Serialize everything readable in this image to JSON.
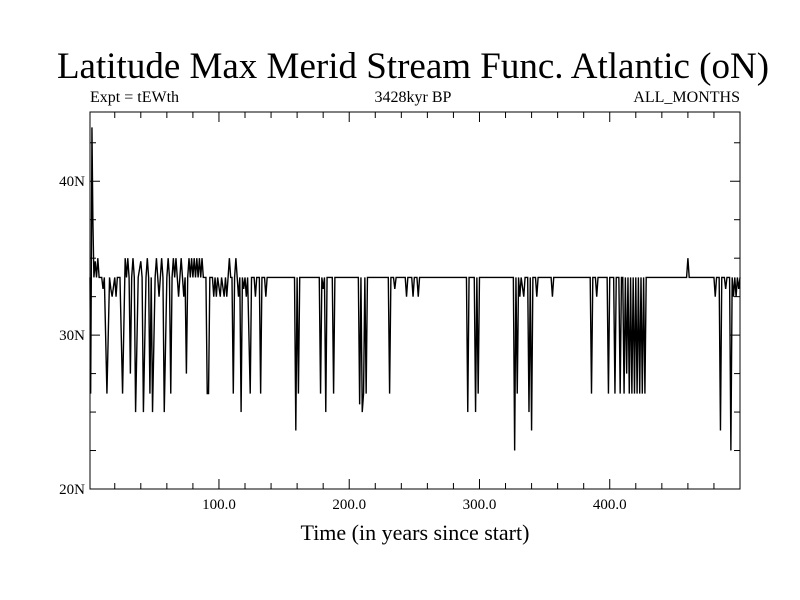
{
  "chart_data": {
    "type": "line",
    "title": "Latitude Max Merid Stream Func. Atlantic (oN)",
    "subtitle_left": "Expt = tEWth",
    "subtitle_center": "3428kyr BP",
    "subtitle_right": "ALL_MONTHS",
    "xlabel": "Time (in years since start)",
    "ylabel": "",
    "xlim": [
      1,
      500
    ],
    "ylim": [
      20,
      44.5
    ],
    "x_ticks": [
      {
        "value": 100,
        "label": "100.0"
      },
      {
        "value": 200,
        "label": "200.0"
      },
      {
        "value": 300,
        "label": "300.0"
      },
      {
        "value": 400,
        "label": "400.0"
      }
    ],
    "y_ticks": [
      {
        "value": 20,
        "label": "20N"
      },
      {
        "value": 30,
        "label": "30N"
      },
      {
        "value": 40,
        "label": "40N"
      }
    ],
    "baseline": 33.75,
    "points": [
      [
        1,
        33.75
      ],
      [
        1.5,
        26.2
      ],
      [
        2,
        33.75
      ],
      [
        2.5,
        43.5
      ],
      [
        3.2,
        37.5
      ],
      [
        4,
        33.75
      ],
      [
        5,
        34.8
      ],
      [
        6,
        33.75
      ],
      [
        7,
        35.0
      ],
      [
        8,
        33.75
      ],
      [
        10,
        33.75
      ],
      [
        11,
        33.0
      ],
      [
        12,
        33.75
      ],
      [
        14,
        26.2
      ],
      [
        16,
        33.75
      ],
      [
        17,
        33.0
      ],
      [
        18,
        32.5
      ],
      [
        20,
        33.75
      ],
      [
        21,
        32.5
      ],
      [
        22,
        33.75
      ],
      [
        24,
        33.75
      ],
      [
        26,
        26.2
      ],
      [
        28,
        35.0
      ],
      [
        29,
        33.75
      ],
      [
        30,
        35.0
      ],
      [
        31,
        33.75
      ],
      [
        32,
        27.5
      ],
      [
        33,
        33.75
      ],
      [
        34,
        35.0
      ],
      [
        35,
        33.75
      ],
      [
        36,
        25.0
      ],
      [
        38,
        33.75
      ],
      [
        40,
        34.8
      ],
      [
        41,
        33.75
      ],
      [
        42,
        25.0
      ],
      [
        44,
        33.75
      ],
      [
        45,
        35.0
      ],
      [
        46,
        33.75
      ],
      [
        47,
        26.2
      ],
      [
        48,
        33.75
      ],
      [
        49,
        25.0
      ],
      [
        51,
        33.75
      ],
      [
        52,
        35.0
      ],
      [
        53,
        33.75
      ],
      [
        54,
        32.5
      ],
      [
        55,
        33.75
      ],
      [
        56,
        35.0
      ],
      [
        57,
        33.75
      ],
      [
        58,
        25.0
      ],
      [
        60,
        33.75
      ],
      [
        61,
        35.0
      ],
      [
        62,
        33.75
      ],
      [
        63,
        26.2
      ],
      [
        64,
        33.75
      ],
      [
        65,
        35.0
      ],
      [
        66,
        33.75
      ],
      [
        67,
        35.0
      ],
      [
        68,
        33.75
      ],
      [
        69,
        32.5
      ],
      [
        70,
        33.75
      ],
      [
        71,
        35.0
      ],
      [
        72,
        33.75
      ],
      [
        73,
        32.5
      ],
      [
        74,
        33.75
      ],
      [
        75,
        27.5
      ],
      [
        76,
        33.75
      ],
      [
        77,
        35.0
      ],
      [
        78,
        33.75
      ],
      [
        79,
        35.0
      ],
      [
        80,
        33.75
      ],
      [
        81,
        35.0
      ],
      [
        82,
        33.75
      ],
      [
        83,
        35.0
      ],
      [
        84,
        33.75
      ],
      [
        85,
        35.0
      ],
      [
        86,
        33.75
      ],
      [
        87,
        35.0
      ],
      [
        88,
        33.75
      ],
      [
        90,
        33.75
      ],
      [
        91,
        26.2
      ],
      [
        92,
        26.2
      ],
      [
        93,
        33.75
      ],
      [
        95,
        33.75
      ],
      [
        96,
        32.5
      ],
      [
        97,
        33.75
      ],
      [
        98,
        32.5
      ],
      [
        99,
        33.75
      ],
      [
        101,
        32.5
      ],
      [
        102,
        33.75
      ],
      [
        104,
        32.5
      ],
      [
        105,
        33.75
      ],
      [
        106,
        32.5
      ],
      [
        107,
        33.75
      ],
      [
        108,
        35.0
      ],
      [
        109,
        33.75
      ],
      [
        110,
        33.75
      ],
      [
        111,
        26.2
      ],
      [
        112,
        33.75
      ],
      [
        113,
        35.0
      ],
      [
        114,
        33.75
      ],
      [
        115,
        32.5
      ],
      [
        116,
        33.75
      ],
      [
        117,
        25.0
      ],
      [
        118,
        33.75
      ],
      [
        119,
        33.0
      ],
      [
        120,
        33.75
      ],
      [
        121,
        32.5
      ],
      [
        122,
        33.75
      ],
      [
        124,
        26.2
      ],
      [
        125,
        33.75
      ],
      [
        127,
        33.75
      ],
      [
        128,
        32.5
      ],
      [
        129,
        33.75
      ],
      [
        131,
        33.75
      ],
      [
        132,
        26.2
      ],
      [
        133,
        33.75
      ],
      [
        135,
        33.75
      ],
      [
        136,
        32.5
      ],
      [
        137,
        33.75
      ],
      [
        158,
        33.75
      ],
      [
        159,
        23.8
      ],
      [
        160,
        33.75
      ],
      [
        161,
        26.2
      ],
      [
        162,
        33.75
      ],
      [
        177,
        33.75
      ],
      [
        178,
        26.2
      ],
      [
        179,
        33.75
      ],
      [
        180,
        33.0
      ],
      [
        181,
        33.75
      ],
      [
        182,
        25.0
      ],
      [
        183,
        33.75
      ],
      [
        187,
        33.75
      ],
      [
        188,
        26.2
      ],
      [
        189,
        33.75
      ],
      [
        207,
        33.75
      ],
      [
        208,
        25.5
      ],
      [
        209,
        33.75
      ],
      [
        210,
        25.0
      ],
      [
        211,
        26.2
      ],
      [
        212,
        33.75
      ],
      [
        213,
        26.2
      ],
      [
        214,
        33.75
      ],
      [
        230,
        33.75
      ],
      [
        231,
        26.2
      ],
      [
        232,
        33.75
      ],
      [
        234,
        33.75
      ],
      [
        235,
        33.0
      ],
      [
        236,
        33.75
      ],
      [
        243,
        33.75
      ],
      [
        244,
        32.5
      ],
      [
        245,
        33.75
      ],
      [
        248,
        33.75
      ],
      [
        249,
        32.5
      ],
      [
        250,
        33.75
      ],
      [
        252,
        33.75
      ],
      [
        253,
        32.5
      ],
      [
        254,
        33.75
      ],
      [
        290,
        33.75
      ],
      [
        291,
        25.0
      ],
      [
        292,
        33.75
      ],
      [
        296,
        33.75
      ],
      [
        297,
        25.0
      ],
      [
        298,
        33.75
      ],
      [
        299,
        26.2
      ],
      [
        300,
        33.75
      ],
      [
        326,
        33.75
      ],
      [
        327,
        22.5
      ],
      [
        328,
        33.75
      ],
      [
        329,
        26.2
      ],
      [
        330,
        33.75
      ],
      [
        331,
        32.5
      ],
      [
        332,
        33.75
      ],
      [
        334,
        32.5
      ],
      [
        335,
        33.75
      ],
      [
        337,
        33.75
      ],
      [
        338,
        25.0
      ],
      [
        339,
        33.75
      ],
      [
        340,
        23.8
      ],
      [
        341,
        33.75
      ],
      [
        343,
        33.75
      ],
      [
        344,
        32.5
      ],
      [
        345,
        33.75
      ],
      [
        355,
        33.75
      ],
      [
        356,
        32.5
      ],
      [
        357,
        33.75
      ],
      [
        385,
        33.75
      ],
      [
        386,
        26.2
      ],
      [
        387,
        33.75
      ],
      [
        389,
        33.75
      ],
      [
        390,
        32.5
      ],
      [
        391,
        33.75
      ],
      [
        398,
        33.75
      ],
      [
        399,
        26.2
      ],
      [
        400,
        33.75
      ],
      [
        403,
        33.75
      ],
      [
        404,
        26.2
      ],
      [
        405,
        33.75
      ],
      [
        407,
        33.75
      ],
      [
        408,
        26.2
      ],
      [
        409,
        33.75
      ],
      [
        410,
        33.75
      ],
      [
        411,
        26.2
      ],
      [
        412,
        33.75
      ],
      [
        413,
        27.5
      ],
      [
        414,
        33.75
      ],
      [
        415,
        26.2
      ],
      [
        416,
        33.75
      ],
      [
        417,
        26.2
      ],
      [
        418,
        33.75
      ],
      [
        419,
        26.2
      ],
      [
        420,
        33.75
      ],
      [
        421,
        26.2
      ],
      [
        422,
        33.75
      ],
      [
        423,
        26.2
      ],
      [
        424,
        33.75
      ],
      [
        425,
        26.2
      ],
      [
        426,
        33.75
      ],
      [
        427,
        26.2
      ],
      [
        428,
        33.75
      ],
      [
        459,
        33.75
      ],
      [
        460,
        35.0
      ],
      [
        461,
        33.75
      ],
      [
        480,
        33.75
      ],
      [
        481,
        32.5
      ],
      [
        482,
        33.75
      ],
      [
        484,
        33.75
      ],
      [
        485,
        23.8
      ],
      [
        486,
        33.75
      ],
      [
        488,
        33.75
      ],
      [
        489,
        33.0
      ],
      [
        490,
        33.75
      ],
      [
        492,
        33.75
      ],
      [
        493,
        22.5
      ],
      [
        494,
        33.75
      ],
      [
        495,
        32.5
      ],
      [
        496,
        33.75
      ],
      [
        497,
        32.5
      ],
      [
        498,
        33.75
      ],
      [
        499,
        33.0
      ],
      [
        500,
        33.75
      ]
    ],
    "grid": false,
    "line_color": "#000000"
  }
}
